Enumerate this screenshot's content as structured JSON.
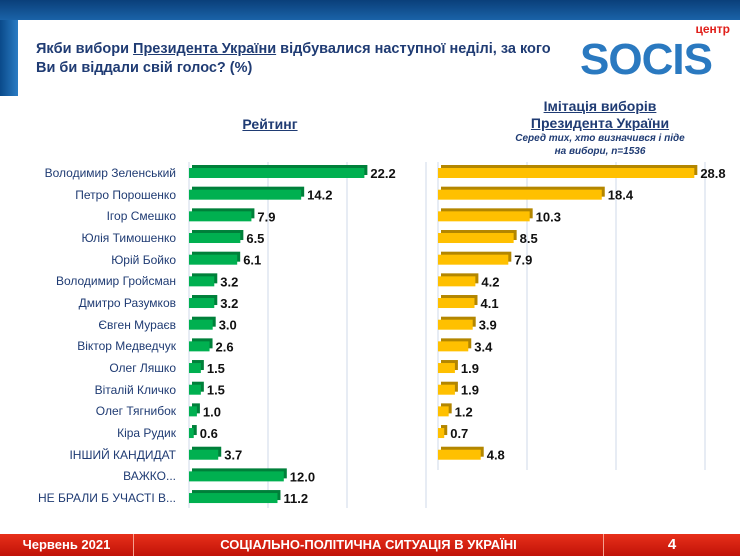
{
  "header": {
    "title_pre": "Якби вибори ",
    "title_link": "Президента України",
    "title_post": " відбувалися наступної неділі, за кого Ви би віддали свій голос? (%)"
  },
  "logo": {
    "top": "центр",
    "word": "SOCIS"
  },
  "footer": {
    "date": "Червень 2021",
    "section": "СОЦІАЛЬНО-ПОЛІТИЧНА СИТУАЦІЯ В УКРАЇНІ",
    "page": "4"
  },
  "chart_data": [
    {
      "type": "bar",
      "orientation": "horizontal",
      "title": "Рейтинг",
      "color": "#00b050",
      "categories": [
        "Володимир Зеленський",
        "Петро Порошенко",
        "Ігор Смешко",
        "Юлія Тимошенко",
        "Юрій Бойко",
        "Володимир Гройсман",
        "Дмитро Разумков",
        "Євген Мураєв",
        "Віктор Медведчук",
        "Олег Ляшко",
        "Віталій Кличко",
        "Олег Тягнибок",
        "Кіра Рудик",
        "ІНШИЙ КАНДИДАТ",
        "ВАЖКО...",
        "НЕ БРАЛИ Б УЧАСТІ В..."
      ],
      "values": [
        22.2,
        14.2,
        7.9,
        6.5,
        6.1,
        3.2,
        3.2,
        3.0,
        2.6,
        1.5,
        1.5,
        1.0,
        0.6,
        3.7,
        12.0,
        11.2
      ],
      "xlim": [
        0,
        30
      ]
    },
    {
      "type": "bar",
      "orientation": "horizontal",
      "title": "Імітація виборів Президента України",
      "subtitle": "Серед тих, хто визначився і піде на вибори, n=1536",
      "color": "#ffc000",
      "values": [
        28.8,
        18.4,
        10.3,
        8.5,
        7.9,
        4.2,
        4.1,
        3.9,
        3.4,
        1.9,
        1.9,
        1.2,
        0.7,
        4.8,
        null,
        null
      ],
      "xlim": [
        0,
        30
      ]
    }
  ]
}
